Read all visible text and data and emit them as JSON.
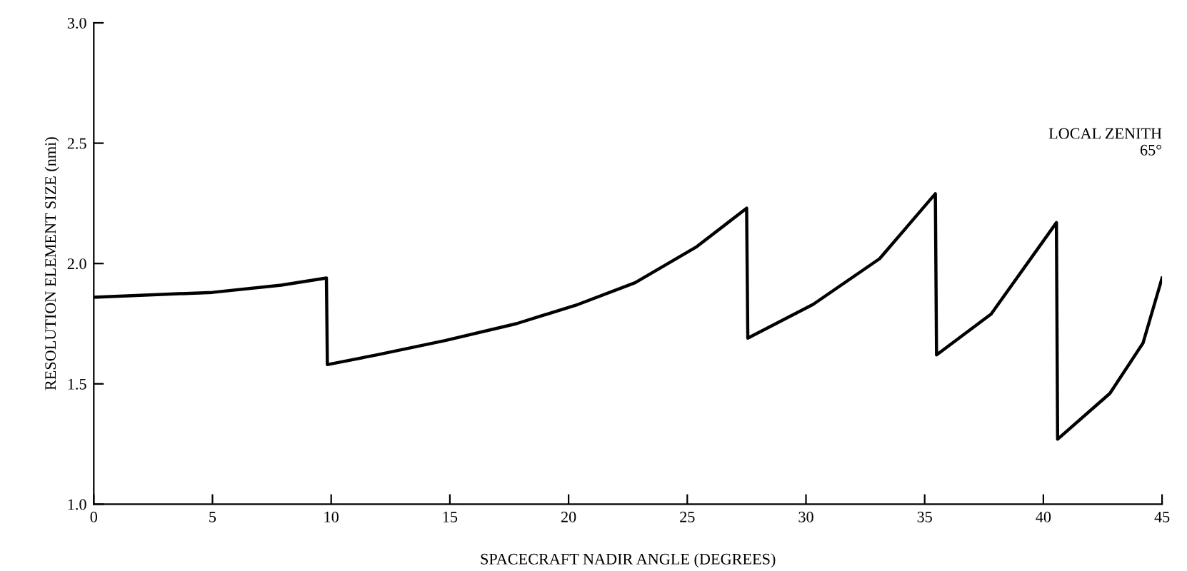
{
  "chart_data": {
    "type": "line",
    "xlabel": "SPACECRAFT NADIR ANGLE (DEGREES)",
    "ylabel": "RESOLUTION ELEMENT SIZE (nmi)",
    "annotations": [
      "LOCAL ZENITH\n65°"
    ],
    "series": [
      {
        "color": "#000000",
        "x": [
          0,
          5.0,
          7.9,
          9.8,
          9.84,
          11.9,
          14.8,
          17.8,
          20.4,
          22.8,
          25.4,
          27.5,
          27.55,
          30.3,
          33.1,
          35.45,
          35.5,
          37.8,
          40.55,
          40.6,
          42.8,
          44.2,
          45
        ],
        "values": [
          1.86,
          1.88,
          1.91,
          1.94,
          1.58,
          1.62,
          1.68,
          1.75,
          1.83,
          1.92,
          2.07,
          2.23,
          1.69,
          1.83,
          2.02,
          2.29,
          1.62,
          1.79,
          2.17,
          1.27,
          1.46,
          1.67,
          1.94
        ]
      }
    ],
    "xlim": [
      0,
      45
    ],
    "ylim": [
      1.0,
      3.0
    ],
    "xticks": [
      0,
      5,
      10,
      15,
      20,
      25,
      30,
      35,
      40,
      45
    ],
    "yticks": [
      {
        "value": 1.0,
        "label": "1.0"
      },
      {
        "value": 1.5,
        "label": "1.5"
      },
      {
        "value": 2.0,
        "label": "2.0"
      },
      {
        "value": 2.5,
        "label": "2.5"
      },
      {
        "value": 3.0,
        "label": "3.0"
      }
    ],
    "grid": false,
    "marker": "none",
    "line_style": "solid"
  }
}
